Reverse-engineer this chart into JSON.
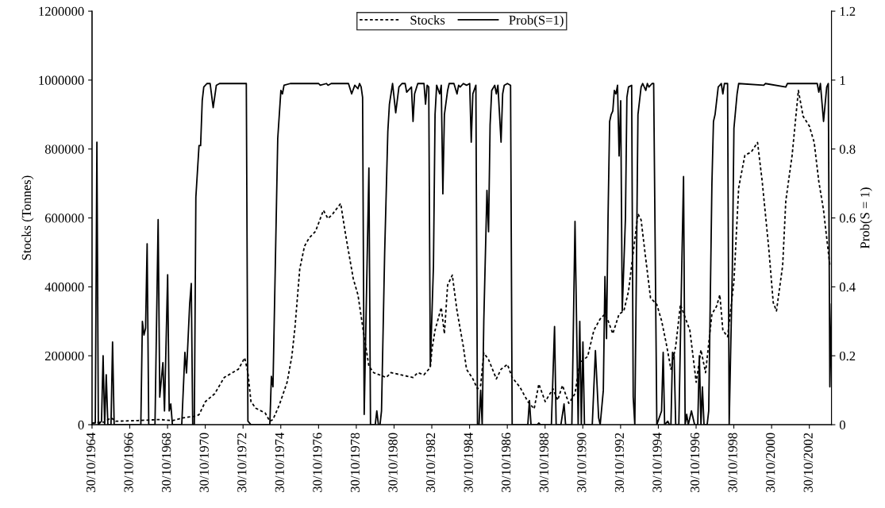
{
  "chart_data": {
    "type": "line",
    "ylabel": "Stocks (Tonnes)",
    "y2label": "Prob(S = 1)",
    "xlim": [
      "1964-10-30",
      "2004-01-01"
    ],
    "xticks": [
      {
        "value": "1964-10-30",
        "label": "30/10/1964"
      },
      {
        "value": "1966-10-30",
        "label": "30/10/1966"
      },
      {
        "value": "1968-10-30",
        "label": "30/10/1968"
      },
      {
        "value": "1970-10-30",
        "label": "30/10/1970"
      },
      {
        "value": "1972-10-30",
        "label": "30/10/1972"
      },
      {
        "value": "1974-10-30",
        "label": "30/10/1974"
      },
      {
        "value": "1976-10-30",
        "label": "30/10/1976"
      },
      {
        "value": "1978-10-30",
        "label": "30/10/1978"
      },
      {
        "value": "1980-10-30",
        "label": "30/10/1980"
      },
      {
        "value": "1982-10-30",
        "label": "30/10/1982"
      },
      {
        "value": "1984-10-30",
        "label": "30/10/1984"
      },
      {
        "value": "1986-10-30",
        "label": "30/10/1986"
      },
      {
        "value": "1988-10-30",
        "label": "30/10/1988"
      },
      {
        "value": "1990-10-30",
        "label": "30/10/1990"
      },
      {
        "value": "1992-10-30",
        "label": "30/10/1992"
      },
      {
        "value": "1994-10-30",
        "label": "30/10/1994"
      },
      {
        "value": "1996-10-30",
        "label": "30/10/1996"
      },
      {
        "value": "1998-10-30",
        "label": "30/10/1998"
      },
      {
        "value": "2000-10-30",
        "label": "30/10/2000"
      },
      {
        "value": "2002-10-30",
        "label": "30/10/2002"
      }
    ],
    "ylim": [
      0,
      1200000
    ],
    "yticks": [
      0,
      200000,
      400000,
      600000,
      800000,
      1000000,
      1200000
    ],
    "y2lim": [
      0,
      1.2
    ],
    "y2ticks": [
      0,
      0.2,
      0.4,
      0.6,
      0.8,
      1,
      1.2
    ],
    "grid": false,
    "legend": "top",
    "marker": "none",
    "series": [
      {
        "name": "Stocks",
        "color": "#000000",
        "line_style": "dotted",
        "x": [
          "1964-11",
          "1965-07",
          "1965-11",
          "1966-02",
          "1967-04",
          "1968-06",
          "1969-02",
          "1969-09",
          "1970-05",
          "1970-07",
          "1970-11",
          "1971-05",
          "1971-11",
          "1972-08",
          "1972-12",
          "1973-02",
          "1973-04",
          "1973-07",
          "1974-01",
          "1974-04",
          "1974-06",
          "1974-10",
          "1975-03",
          "1975-06",
          "1975-08",
          "1975-11",
          "1976-02",
          "1976-05",
          "1976-09",
          "1977-02",
          "1977-05",
          "1977-08",
          "1978-01",
          "1978-04",
          "1978-09",
          "1978-12",
          "1979-04",
          "1979-07",
          "1979-10",
          "1980-02",
          "1980-06",
          "1980-09",
          "1981-03",
          "1981-11",
          "1982-02",
          "1982-06",
          "1982-10",
          "1982-11",
          "1983-01",
          "1983-05",
          "1983-07",
          "1983-09",
          "1983-12",
          "1984-03",
          "1984-07",
          "1984-09",
          "1985-01",
          "1985-04",
          "1985-06",
          "1985-08",
          "1985-11",
          "1986-04",
          "1986-07",
          "1986-11",
          "1987-02",
          "1987-07",
          "1987-12",
          "1988-04",
          "1988-07",
          "1988-11",
          "1989-04",
          "1989-07",
          "1989-10",
          "1990-02",
          "1990-06",
          "1990-09",
          "1991-02",
          "1991-06",
          "1991-10",
          "1992-01",
          "1992-03",
          "1992-06",
          "1992-10",
          "1993-01",
          "1993-04",
          "1993-07",
          "1993-10",
          "1993-12",
          "1994-03",
          "1994-06",
          "1994-10",
          "1995-01",
          "1995-04",
          "1995-07",
          "1995-10",
          "1996-01",
          "1996-04",
          "1996-07",
          "1996-11",
          "1997-02",
          "1997-05",
          "1997-09",
          "1997-12",
          "1998-02",
          "1998-04",
          "1998-07",
          "1998-11",
          "1999-02",
          "1999-06",
          "1999-10",
          "2000-02",
          "2000-05",
          "2000-09",
          "2000-12",
          "2001-02",
          "2001-06",
          "2001-08",
          "2001-12",
          "2002-04",
          "2002-07",
          "2002-11",
          "2003-02",
          "2003-05",
          "2003-08",
          "2003-12"
        ],
        "values": [
          5000,
          8000,
          20000,
          10000,
          12000,
          15000,
          12000,
          20000,
          25000,
          29000,
          67000,
          90000,
          137000,
          161000,
          194000,
          151000,
          67000,
          48000,
          34000,
          10000,
          15000,
          57000,
          123000,
          198000,
          283000,
          452000,
          518000,
          542000,
          561000,
          622000,
          598000,
          612000,
          642000,
          556000,
          424000,
          377000,
          255000,
          170000,
          151000,
          144000,
          137000,
          151000,
          145000,
          137000,
          151000,
          145000,
          166000,
          217000,
          274000,
          340000,
          264000,
          405000,
          434000,
          330000,
          227000,
          161000,
          133000,
          104000,
          114000,
          208000,
          189000,
          133000,
          161000,
          175000,
          137000,
          109000,
          67000,
          46000,
          118000,
          67000,
          104000,
          71000,
          114000,
          62000,
          90000,
          180000,
          198000,
          274000,
          307000,
          321000,
          302000,
          264000,
          321000,
          330000,
          387000,
          500000,
          612000,
          594000,
          481000,
          368000,
          349000,
          302000,
          236000,
          161000,
          227000,
          349000,
          311000,
          274000,
          123000,
          217000,
          151000,
          321000,
          344000,
          377000,
          274000,
          255000,
          415000,
          688000,
          782000,
          791000,
          819000,
          706000,
          518000,
          354000,
          330000,
          462000,
          650000,
          782000,
          970000,
          895000,
          866000,
          819000,
          706000,
          622000,
          462000
        ]
      },
      {
        "name": "Prob(S=1)",
        "color": "#000000",
        "line_style": "solid",
        "axis": "y2",
        "x": [
          "1964-11",
          "1965-01",
          "1965-02",
          "1965-03",
          "1965-05",
          "1965-06",
          "1965-07",
          "1965-08",
          "1965-09",
          "1965-11",
          "1965-12",
          "1966-01",
          "1967-06",
          "1967-07",
          "1967-08",
          "1967-09",
          "1967-10",
          "1967-11",
          "1968-03",
          "1968-05",
          "1968-06",
          "1968-08",
          "1968-09",
          "1968-11",
          "1968-12",
          "1969-01",
          "1969-02",
          "1969-08",
          "1969-10",
          "1969-11",
          "1970-01",
          "1970-02",
          "1970-03",
          "1970-04",
          "1970-05",
          "1970-07",
          "1970-08",
          "1970-09",
          "1970-10",
          "1970-12",
          "1971-02",
          "1971-04",
          "1971-06",
          "1971-08",
          "1972-04",
          "1973-01",
          "1973-02",
          "1973-04",
          "1974-04",
          "1974-05",
          "1974-06",
          "1974-09",
          "1974-11",
          "1974-12",
          "1975-01",
          "1975-05",
          "1976-11",
          "1976-12",
          "1977-04",
          "1977-05",
          "1977-07",
          "1978-06",
          "1978-08",
          "1978-10",
          "1978-12",
          "1979-01",
          "1979-02",
          "1979-03",
          "1979-04",
          "1979-07",
          "1979-08",
          "1979-11",
          "1979-12",
          "1980-01",
          "1980-02",
          "1980-03",
          "1980-05",
          "1980-07",
          "1980-08",
          "1980-10",
          "1980-12",
          "1981-02",
          "1981-04",
          "1981-06",
          "1981-07",
          "1981-10",
          "1981-11",
          "1981-12",
          "1982-02",
          "1982-06",
          "1982-07",
          "1982-08",
          "1982-09",
          "1982-10",
          "1982-12",
          "1983-01",
          "1983-02",
          "1983-04",
          "1983-05",
          "1983-06",
          "1983-07",
          "1983-09",
          "1983-10",
          "1984-01",
          "1984-03",
          "1984-04",
          "1984-05",
          "1984-07",
          "1984-09",
          "1984-11",
          "1984-12",
          "1985-01",
          "1985-03",
          "1985-04",
          "1985-05",
          "1985-06",
          "1985-07",
          "1985-08",
          "1985-10",
          "1985-11",
          "1985-12",
          "1986-01",
          "1986-03",
          "1986-04",
          "1986-05",
          "1986-07",
          "1986-08",
          "1986-09",
          "1986-11",
          "1987-01",
          "1987-02",
          "1987-12",
          "1988-01",
          "1988-02",
          "1988-06",
          "1988-07",
          "1988-08",
          "1989-03",
          "1989-05",
          "1989-06",
          "1989-09",
          "1989-11",
          "1989-12",
          "1990-04",
          "1990-06",
          "1990-08",
          "1990-09",
          "1990-10",
          "1990-11",
          "1990-12",
          "1991-05",
          "1991-07",
          "1991-09",
          "1991-10",
          "1991-12",
          "1992-01",
          "1992-02",
          "1992-03",
          "1992-04",
          "1992-05",
          "1992-06",
          "1992-07",
          "1992-08",
          "1992-09",
          "1992-10",
          "1992-11",
          "1992-12",
          "1993-02",
          "1993-03",
          "1993-04",
          "1993-06",
          "1993-07",
          "1993-08",
          "1993-09",
          "1993-10",
          "1993-12",
          "1994-01",
          "1994-03",
          "1994-04",
          "1994-05",
          "1994-07",
          "1994-08",
          "1994-10",
          "1995-01",
          "1995-02",
          "1995-03",
          "1995-05",
          "1995-06",
          "1995-07",
          "1995-08",
          "1995-09",
          "1995-10",
          "1995-12",
          "1996-02",
          "1996-03",
          "1996-04",
          "1996-05",
          "1996-06",
          "1996-08",
          "1996-10",
          "1996-12",
          "1997-01",
          "1997-02",
          "1997-03",
          "1997-04",
          "1997-06",
          "1997-07",
          "1997-09",
          "1997-10",
          "1997-11",
          "1998-01",
          "1998-03",
          "1998-04",
          "1998-05",
          "1998-07",
          "1998-08",
          "1998-10",
          "1998-11",
          "1999-01",
          "1999-02",
          "2000-06",
          "2000-07",
          "2001-08",
          "2001-09",
          "2003-04",
          "2003-05",
          "2003-06",
          "2003-08",
          "2003-10",
          "2003-11",
          "2003-12",
          "2004-01"
        ],
        "values": [
          0.005,
          0.005,
          0.82,
          0,
          0.01,
          0.2,
          0,
          0.145,
          0,
          0,
          0.24,
          0,
          0,
          0.3,
          0.26,
          0.28,
          0.525,
          0,
          0,
          0.595,
          0.08,
          0.18,
          0.04,
          0.435,
          0.04,
          0.06,
          0,
          0,
          0.21,
          0.15,
          0.35,
          0.41,
          0,
          0,
          0.66,
          0.81,
          0.81,
          0.94,
          0.98,
          0.99,
          0.99,
          0.92,
          0.985,
          0.99,
          0.99,
          0.99,
          0.01,
          0,
          0,
          0.14,
          0.11,
          0.83,
          0.97,
          0.96,
          0.985,
          0.99,
          0.99,
          0.985,
          0.99,
          0.985,
          0.99,
          0.99,
          0.96,
          0.985,
          0.975,
          0.99,
          0.98,
          0.95,
          0.03,
          0.745,
          0,
          0,
          0.04,
          0,
          0,
          0.04,
          0.5,
          0.85,
          0.93,
          0.99,
          0.905,
          0.98,
          0.99,
          0.99,
          0.965,
          0.98,
          0.88,
          0.96,
          0.99,
          0.99,
          0.93,
          0.985,
          0.98,
          0.17,
          0.46,
          0.9,
          0.985,
          0.96,
          0.985,
          0.67,
          0.9,
          0.97,
          0.99,
          0.99,
          0.96,
          0.985,
          0.98,
          0.99,
          0.985,
          0.99,
          0.82,
          0.96,
          0.985,
          0,
          0,
          0.1,
          0,
          0.3,
          0.68,
          0.56,
          0.87,
          0.97,
          0.985,
          0.96,
          0.985,
          0.82,
          0.96,
          0.985,
          0.99,
          0.985,
          0,
          0,
          0.07,
          0,
          0,
          0.005,
          0,
          0,
          0.285,
          0,
          0,
          0.06,
          0,
          0,
          0.59,
          0,
          0.3,
          0,
          0.24,
          0,
          0,
          0.215,
          0.02,
          0,
          0.1,
          0.43,
          0.25,
          0.6,
          0.88,
          0.9,
          0.91,
          0.97,
          0.96,
          0.985,
          0.78,
          0.94,
          0.33,
          0.6,
          0.95,
          0.98,
          0.985,
          0.08,
          0,
          0.45,
          0.9,
          0.98,
          0.99,
          0.97,
          0.99,
          0.98,
          0.99,
          0.99,
          0,
          0.04,
          0.21,
          0,
          0.01,
          0,
          0,
          0.21,
          0.2,
          0,
          0,
          0.5,
          0.72,
          0,
          0.03,
          0,
          0.04,
          0,
          0,
          0.2,
          0,
          0.11,
          0,
          0,
          0.04,
          0.7,
          0.88,
          0.9,
          0.98,
          0.99,
          0.96,
          0.99,
          0.99,
          0,
          0.45,
          0.86,
          0.96,
          0.99,
          0.985,
          0.99,
          0.98,
          0.99,
          0.99,
          0.965,
          0.99,
          0.88,
          0.98,
          0.99,
          0.11,
          0.35
        ]
      }
    ]
  }
}
